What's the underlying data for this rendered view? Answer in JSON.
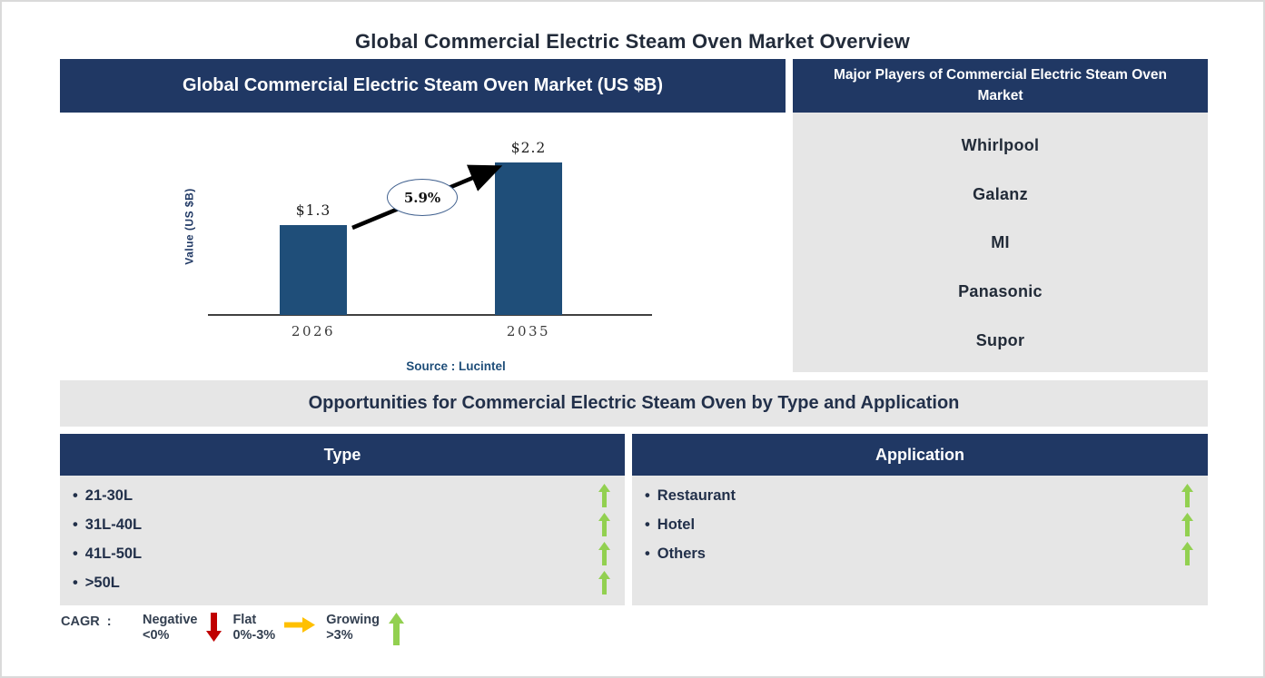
{
  "page_title": "Global Commercial Electric Steam Oven Market Overview",
  "ui": {
    "bullet": "•"
  },
  "chart_section": {
    "header": "Global Commercial Electric Steam Oven Market (US $B)"
  },
  "chart_data": {
    "type": "bar",
    "title": "Global Commercial Electric Steam Oven Market (US $B)",
    "categories": [
      "2026",
      "2035"
    ],
    "values": [
      1.3,
      2.2
    ],
    "value_labels": [
      "$1.3",
      "$2.2"
    ],
    "ylabel": "Value (US $B)",
    "xlabel": "",
    "ylim": [
      0,
      2.6
    ],
    "grid": false,
    "cagr_label": "5.9%",
    "bar_color": "#1F4E79",
    "source": "Source : Lucintel"
  },
  "players": {
    "header": "Major Players of Commercial Electric Steam Oven Market",
    "items": [
      "Whirlpool",
      "Galanz",
      "MI",
      "Panasonic",
      "Supor"
    ]
  },
  "opportunities": {
    "header": "Opportunities for Commercial Electric Steam Oven by Type and Application",
    "type": {
      "header": "Type",
      "items": [
        {
          "label": "21-30L",
          "trend": "growing"
        },
        {
          "label": "31L-40L",
          "trend": "growing"
        },
        {
          "label": "41L-50L",
          "trend": "growing"
        },
        {
          "label": ">50L",
          "trend": "growing"
        }
      ]
    },
    "application": {
      "header": "Application",
      "items": [
        {
          "label": "Restaurant",
          "trend": "growing"
        },
        {
          "label": "Hotel",
          "trend": "growing"
        },
        {
          "label": "Others",
          "trend": "growing"
        }
      ]
    }
  },
  "legend": {
    "label": "CAGR  :",
    "entries": [
      {
        "name": "Negative",
        "range": "<0%",
        "direction": "down",
        "color": "#C00000"
      },
      {
        "name": "Flat",
        "range": "0%-3%",
        "direction": "right",
        "color": "#FFC000"
      },
      {
        "name": "Growing",
        "range": ">3%",
        "direction": "up",
        "color": "#92D050"
      }
    ]
  },
  "colors": {
    "header_navy": "#203864",
    "bar_blue": "#1F4E79",
    "panel_gray": "#E6E6E6",
    "growing_green": "#92D050",
    "negative_red": "#C00000",
    "flat_orange": "#FFC000"
  }
}
